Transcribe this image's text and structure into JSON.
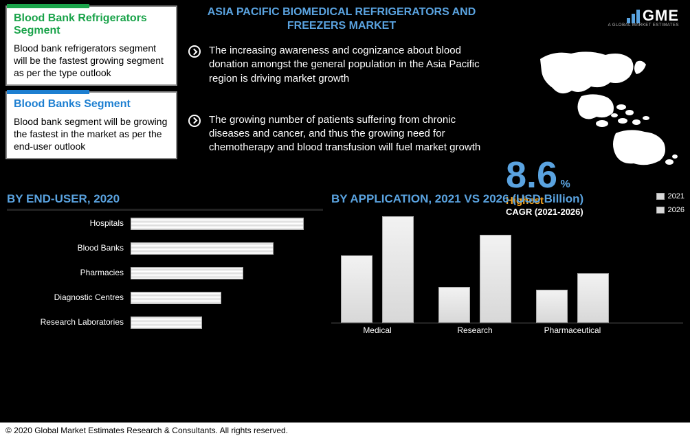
{
  "title": "ASIA PACIFIC BIOMEDICAL REFRIGERATORS AND FREEZERS MARKET",
  "logo": {
    "text": "GME",
    "sub": "A GLOBAL MARKET ESTIMATES"
  },
  "cards": [
    {
      "title": "Blood Bank Refrigerators Segment",
      "body": "Blood bank refrigerators segment will be the fastest growing segment as per the type outlook",
      "accent": "#1aa34a",
      "title_color": "#1aa34a"
    },
    {
      "title": "Blood Banks Segment",
      "body": "Blood bank segment will be growing the fastest in the market as per the end-user outlook",
      "accent": "#1d7fd1",
      "title_color": "#1d7fd1"
    }
  ],
  "bullets": [
    "The increasing awareness and cognizance about blood donation amongst the general population in the Asia Pacific region is driving market growth",
    "The growing number of patients suffering from chronic diseases and cancer, and thus the growing need for chemotherapy and blood transfusion will fuel market growth"
  ],
  "stat": {
    "value": "8.6",
    "unit": "%",
    "label": "Highest",
    "sub": "CAGR (2021-2026)"
  },
  "end_user": {
    "title": "BY END-USER, 2020",
    "max": 100,
    "rows": [
      {
        "label": "Hospitals",
        "value": 92
      },
      {
        "label": "Blood Banks",
        "value": 76
      },
      {
        "label": "Pharmacies",
        "value": 60
      },
      {
        "label": "Diagnostic Centres",
        "value": 48
      },
      {
        "label": "Research Laboratories",
        "value": 38
      }
    ],
    "bar_color": "#e6e6e6"
  },
  "application": {
    "title": "BY APPLICATION, 2021 VS 2026 (USD Billion)",
    "ymax": 160,
    "groups": [
      {
        "label": "Medical",
        "v2021": 98,
        "v2026": 155
      },
      {
        "label": "Research",
        "v2021": 52,
        "v2026": 128
      },
      {
        "label": "Pharmaceutical",
        "v2021": 48,
        "v2026": 72
      }
    ],
    "legend": [
      "2021",
      "2026"
    ],
    "bar_fill": "#e0e0e0"
  },
  "footer": "© 2020 Global Market Estimates Research & Consultants. All rights reserved.",
  "colors": {
    "bg": "#000000",
    "accent_blue": "#5aa3e0",
    "accent_orange": "#f5a623"
  }
}
